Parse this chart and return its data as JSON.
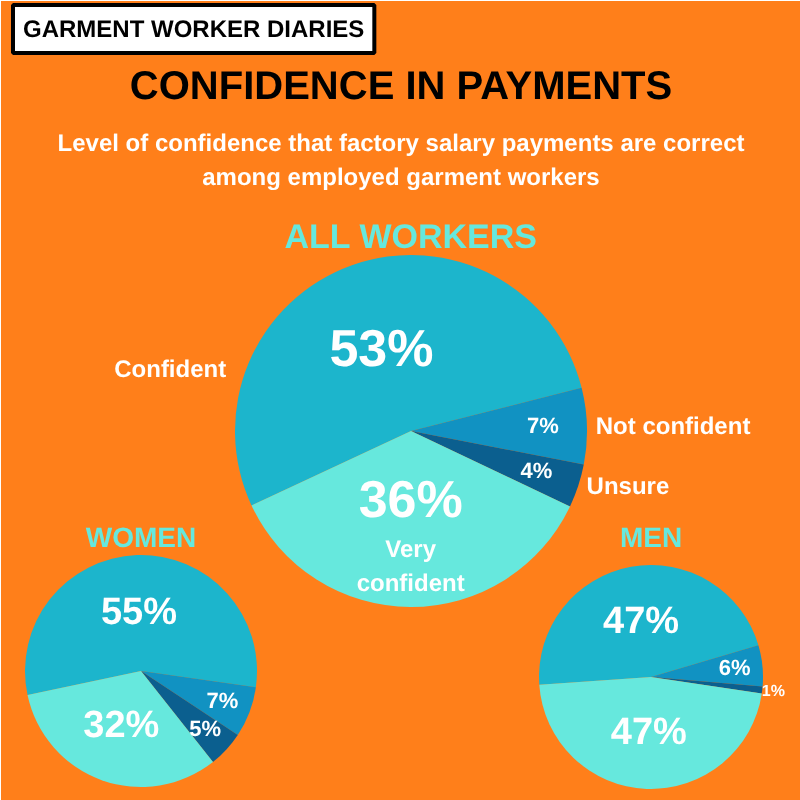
{
  "chart_data": [
    {
      "type": "pie",
      "title": "ALL WORKERS",
      "categories": [
        "Confident",
        "Not confident",
        "Unsure",
        "Very\nconfident"
      ],
      "values": [
        53,
        7,
        4,
        36
      ],
      "colors": [
        "#1cb5cc",
        "#1192c2",
        "#0b5f8f",
        "#66e8dd"
      ],
      "value_labels": [
        "53%",
        "7%",
        "4%",
        "36%"
      ],
      "annotations": [
        "GARMENT WORKER DIARIES",
        "CONFIDENCE IN PAYMENTS",
        "Level of confidence that factory salary payments are correct\namong employed garment workers"
      ]
    },
    {
      "type": "pie",
      "title": "WOMEN",
      "categories": [
        null,
        null,
        null,
        null
      ],
      "values": [
        55,
        7,
        5,
        32
      ],
      "colors": [
        "#1cb5cc",
        "#1192c2",
        "#0b5f8f",
        "#66e8dd"
      ],
      "value_labels": [
        "55%",
        "7%",
        "5%",
        "32%"
      ]
    },
    {
      "type": "pie",
      "title": "MEN",
      "categories": [
        null,
        null,
        null,
        null
      ],
      "values": [
        47,
        6,
        1,
        47
      ],
      "colors": [
        "#1cb5cc",
        "#1192c2",
        "#0b5f8f",
        "#66e8dd"
      ],
      "value_labels": [
        "47%",
        "6%",
        "1%",
        "47%"
      ]
    }
  ]
}
